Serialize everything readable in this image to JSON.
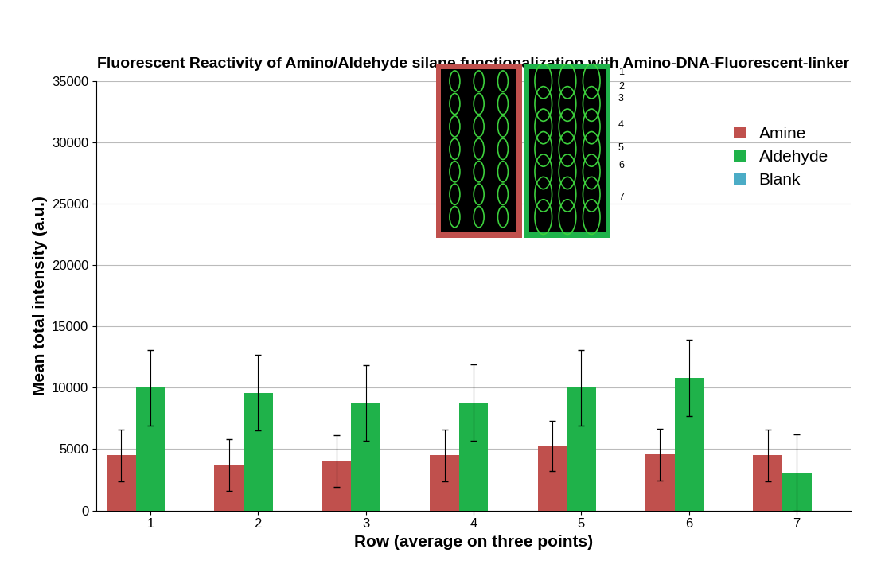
{
  "chart_data": {
    "type": "bar",
    "title": "Fluorescent Reactivity of Amino/Aldehyde silane functionalization with Amino-DNA-Fluorescent-linker",
    "x_label": "Row (average on three points)",
    "y_label": "Mean total intensity (a.u.)",
    "categories": [
      "1",
      "2",
      "3",
      "4",
      "5",
      "6",
      "7"
    ],
    "series": [
      {
        "name": "Amine",
        "color": "#c0504d",
        "values": [
          4500,
          3700,
          4000,
          4500,
          5250,
          4550,
          4500
        ],
        "errors": [
          2100,
          2100,
          2100,
          2100,
          2050,
          2100,
          2100
        ]
      },
      {
        "name": "Aldehyde",
        "color": "#1fb24a",
        "values": [
          10000,
          9600,
          8750,
          8800,
          10000,
          10800,
          3100
        ],
        "errors": [
          3100,
          3100,
          3100,
          3100,
          3100,
          3100,
          3100
        ]
      },
      {
        "name": "Blank",
        "color": "#4bacc6",
        "values": [
          0,
          0,
          0,
          0,
          0,
          0,
          0
        ]
      }
    ],
    "annotations": [
      "1",
      "2",
      "3",
      "4",
      "5",
      "6",
      "7"
    ],
    "ylim": [
      0,
      35000
    ],
    "yticks": [
      0,
      5000,
      10000,
      15000,
      20000,
      25000,
      30000,
      35000
    ],
    "grid": true,
    "legend": "upper right"
  }
}
